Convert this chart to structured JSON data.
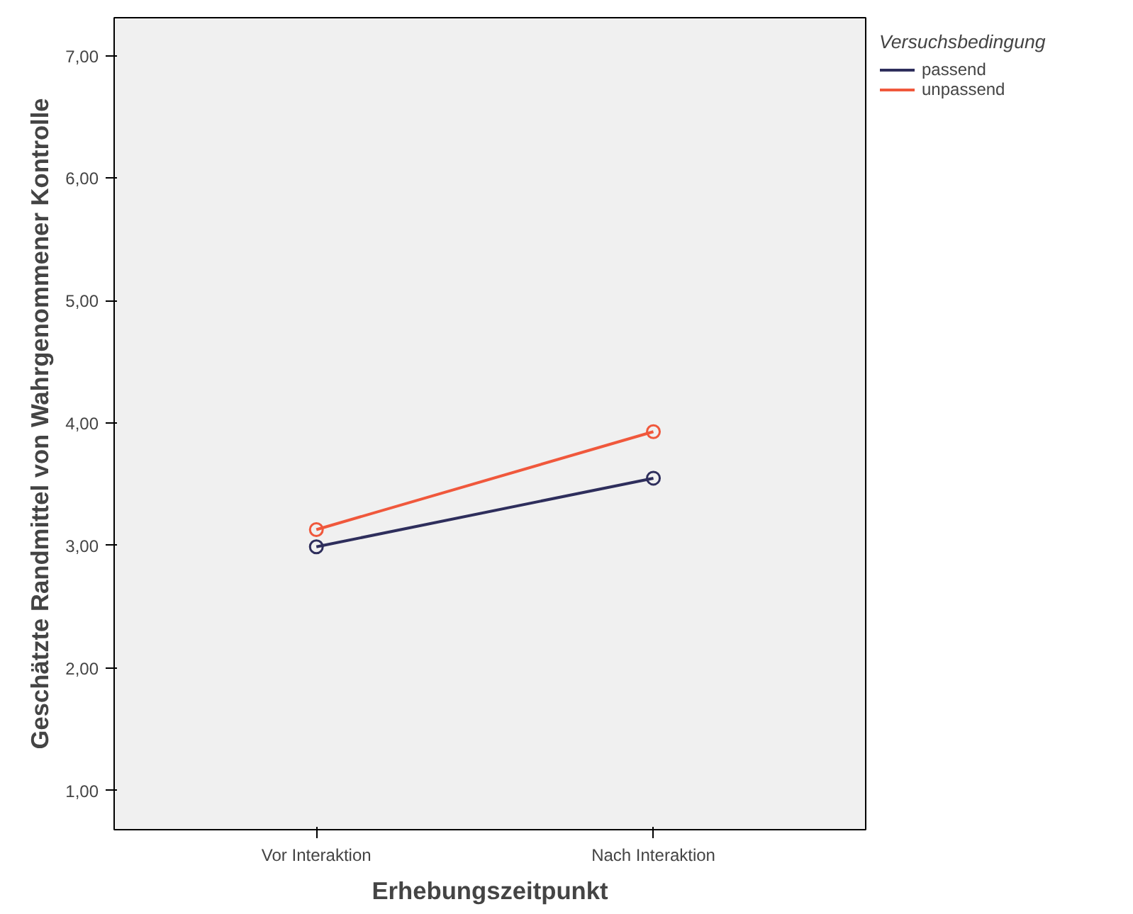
{
  "chart_data": {
    "type": "line",
    "xlabel": "Erhebungszeitpunkt",
    "ylabel": "Geschätzte Randmittel von Wahrgenommener Kontrolle",
    "legend_title": "Versuchsbedingung",
    "categories": [
      "Vor Interaktion",
      "Nach Interaktion"
    ],
    "series": [
      {
        "name": "passend",
        "color": "#2e2e5c",
        "values": [
          2.99,
          3.55
        ]
      },
      {
        "name": "unpassend",
        "color": "#f0583c",
        "values": [
          3.13,
          3.93
        ]
      }
    ],
    "ylim": [
      0.68,
      7.31
    ],
    "yticks": [
      {
        "value": 1,
        "label": "1,00"
      },
      {
        "value": 2,
        "label": "2,00"
      },
      {
        "value": 3,
        "label": "3,00"
      },
      {
        "value": 4,
        "label": "4,00"
      },
      {
        "value": 5,
        "label": "5,00"
      },
      {
        "value": 6,
        "label": "6,00"
      },
      {
        "value": 7,
        "label": "7,00"
      }
    ],
    "grid": false,
    "legend": "top right",
    "marker": "circle",
    "line_style": "solid"
  }
}
